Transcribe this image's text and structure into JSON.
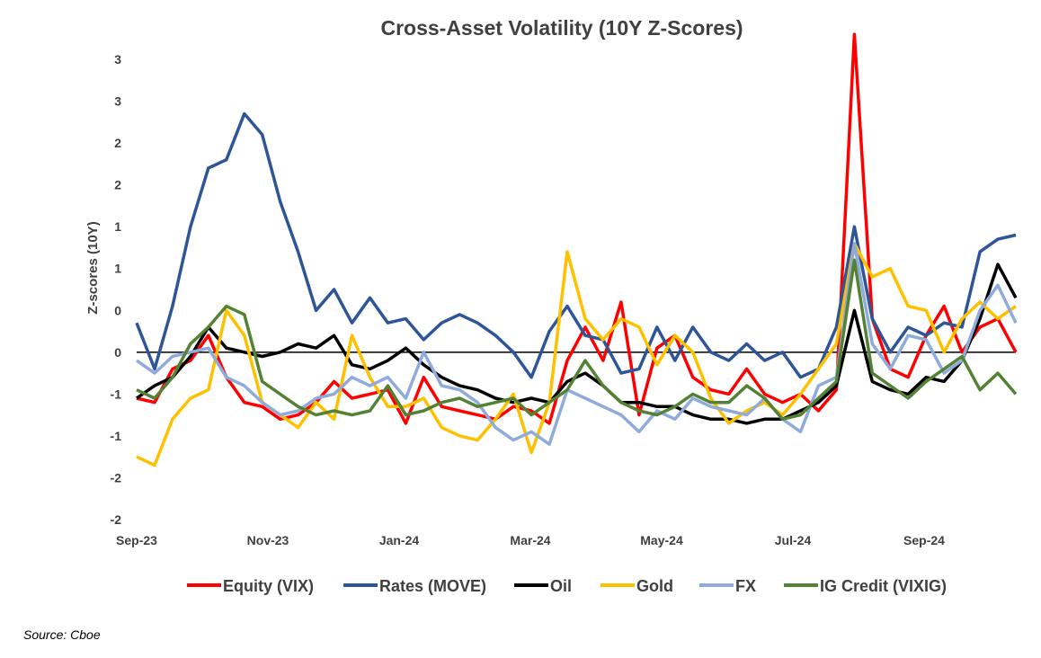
{
  "title": "Cross-Asset Volatility (10Y Z-Scores)",
  "source": "Source: Cboe",
  "chart_data": {
    "type": "line",
    "title": "Cross-Asset Volatility (10Y Z-Scores)",
    "xlabel": "",
    "ylabel": "Z-scores (10Y)",
    "ylim": [
      -2,
      3.5
    ],
    "y_ticks": [
      -2,
      -1.5,
      -1,
      -0.5,
      0,
      0.5,
      1,
      1.5,
      2,
      2.5,
      3,
      3.5
    ],
    "y_tick_labels": [
      "-2",
      "-2",
      "-1",
      "-1",
      "0",
      "0",
      "1",
      "1",
      "2",
      "2",
      "3",
      "3"
    ],
    "x_tick_labels": [
      "Sep-23",
      "Nov-23",
      "Jan-24",
      "Mar-24",
      "May-24",
      "Jul-24",
      "Sep-24"
    ],
    "x_index_range": [
      0,
      28
    ],
    "grid": false,
    "zero_line": true,
    "legend_position": "bottom",
    "series": [
      {
        "name": "Equity (VIX)",
        "color": "#ff0000",
        "values": [
          -0.55,
          -0.6,
          -0.2,
          -0.1,
          0.2,
          -0.3,
          -0.6,
          -0.65,
          -0.8,
          -0.75,
          -0.6,
          -0.35,
          -0.55,
          -0.5,
          -0.45,
          -0.85,
          -0.3,
          -0.65,
          -0.7,
          -0.75,
          -0.8,
          -0.65,
          -0.7,
          -0.85,
          -0.1,
          0.3,
          -0.1,
          0.6,
          -0.75,
          0.05,
          0.2,
          -0.3,
          -0.45,
          -0.5,
          -0.2,
          -0.5,
          -0.6,
          -0.5,
          -0.7,
          -0.45,
          3.8,
          0.4,
          -0.2,
          -0.3,
          0.2,
          0.55,
          0.0,
          0.3,
          0.4,
          0.0
        ]
      },
      {
        "name": "Rates (MOVE)",
        "color": "#2e5597",
        "values": [
          0.35,
          -0.2,
          0.55,
          1.5,
          2.2,
          2.3,
          2.85,
          2.6,
          1.8,
          1.2,
          0.5,
          0.75,
          0.35,
          0.65,
          0.35,
          0.4,
          0.15,
          0.35,
          0.45,
          0.35,
          0.2,
          0.0,
          -0.3,
          0.25,
          0.55,
          0.2,
          0.15,
          -0.25,
          -0.2,
          0.3,
          -0.1,
          0.3,
          0.0,
          -0.1,
          0.1,
          -0.1,
          0.0,
          -0.3,
          -0.2,
          0.3,
          1.5,
          0.4,
          0.0,
          0.3,
          0.2,
          0.35,
          0.3,
          1.2,
          1.35,
          1.4
        ]
      },
      {
        "name": "Oil",
        "color": "#000000",
        "values": [
          -0.55,
          -0.4,
          -0.3,
          -0.05,
          0.3,
          0.05,
          -0.0,
          -0.05,
          0.0,
          0.1,
          0.05,
          0.2,
          -0.15,
          -0.2,
          -0.1,
          0.05,
          -0.15,
          -0.3,
          -0.4,
          -0.45,
          -0.55,
          -0.6,
          -0.55,
          -0.6,
          -0.35,
          -0.25,
          -0.4,
          -0.6,
          -0.6,
          -0.65,
          -0.65,
          -0.75,
          -0.8,
          -0.8,
          -0.85,
          -0.8,
          -0.8,
          -0.7,
          -0.6,
          -0.4,
          0.5,
          -0.35,
          -0.45,
          -0.5,
          -0.3,
          -0.35,
          -0.1,
          0.4,
          1.05,
          0.65
        ]
      },
      {
        "name": "Gold",
        "color": "#ffc000",
        "values": [
          -1.25,
          -1.35,
          -0.8,
          -0.55,
          -0.45,
          0.5,
          0.2,
          -0.6,
          -0.75,
          -0.9,
          -0.6,
          -0.8,
          0.2,
          -0.3,
          -0.65,
          -0.65,
          -0.55,
          -0.9,
          -1.0,
          -1.05,
          -0.8,
          -0.5,
          -1.2,
          -0.6,
          1.2,
          0.4,
          0.15,
          0.4,
          0.3,
          -0.15,
          0.2,
          0.0,
          -0.55,
          -0.85,
          -0.7,
          -0.6,
          -0.75,
          -0.5,
          -0.2,
          0.1,
          1.3,
          0.9,
          1.0,
          0.55,
          0.5,
          0.0,
          0.4,
          0.6,
          0.4,
          0.55
        ]
      },
      {
        "name": "FX",
        "color": "#8fabdb",
        "values": [
          -0.1,
          -0.25,
          -0.05,
          0.0,
          0.05,
          -0.3,
          -0.4,
          -0.6,
          -0.75,
          -0.7,
          -0.55,
          -0.5,
          -0.3,
          -0.4,
          -0.3,
          -0.55,
          0.0,
          -0.4,
          -0.45,
          -0.6,
          -0.9,
          -1.05,
          -0.95,
          -1.1,
          -0.45,
          -0.55,
          -0.65,
          -0.75,
          -0.95,
          -0.7,
          -0.8,
          -0.55,
          -0.65,
          -0.7,
          -0.75,
          -0.55,
          -0.8,
          -0.95,
          -0.4,
          -0.3,
          1.3,
          0.1,
          -0.2,
          0.2,
          0.15,
          -0.25,
          -0.1,
          0.5,
          0.8,
          0.35
        ]
      },
      {
        "name": "IG Credit (VIXIG)",
        "color": "#548235",
        "values": [
          -0.45,
          -0.55,
          -0.3,
          0.1,
          0.3,
          0.55,
          0.45,
          -0.35,
          -0.5,
          -0.65,
          -0.75,
          -0.7,
          -0.75,
          -0.7,
          -0.4,
          -0.75,
          -0.7,
          -0.6,
          -0.55,
          -0.65,
          -0.6,
          -0.55,
          -0.75,
          -0.6,
          -0.45,
          -0.1,
          -0.4,
          -0.6,
          -0.7,
          -0.75,
          -0.65,
          -0.5,
          -0.6,
          -0.6,
          -0.4,
          -0.55,
          -0.8,
          -0.75,
          -0.55,
          -0.35,
          1.1,
          -0.25,
          -0.4,
          -0.55,
          -0.35,
          -0.2,
          -0.05,
          -0.45,
          -0.25,
          -0.5
        ]
      }
    ]
  }
}
